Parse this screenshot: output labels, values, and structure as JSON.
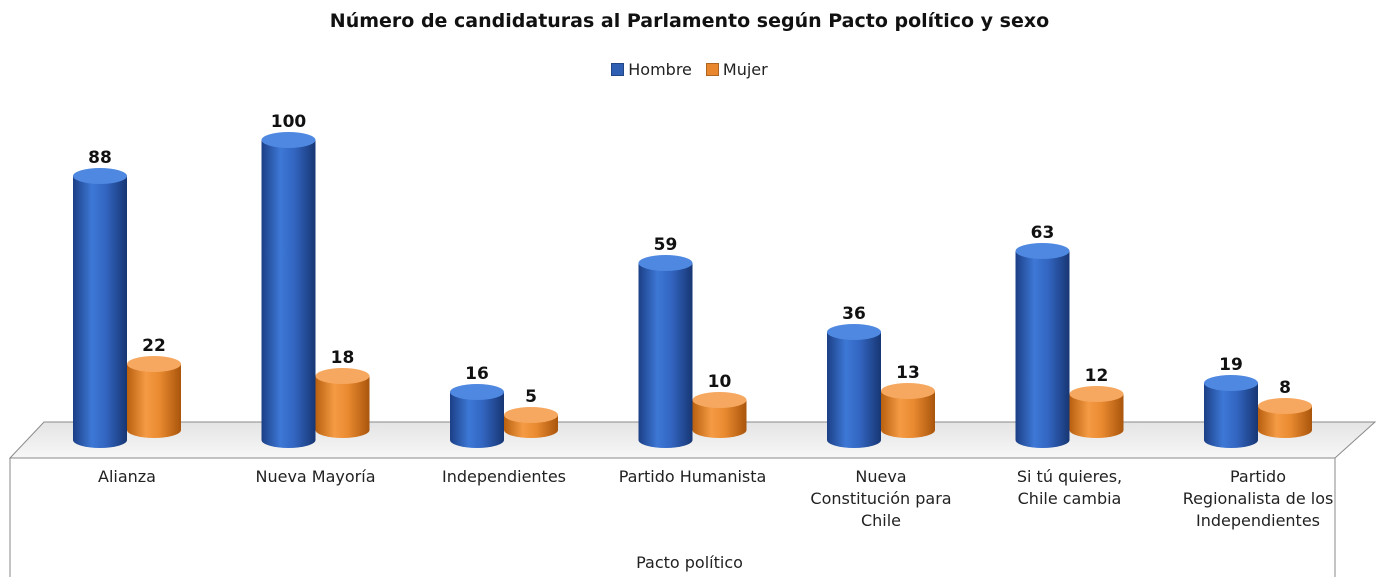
{
  "chart_data": {
    "type": "bar",
    "title": "Número de candidaturas al Parlamento según Pacto político y sexo",
    "xlabel": "Pacto político",
    "ylabel": "",
    "legend_position": "top",
    "categories": [
      "Alianza",
      "Nueva Mayoría",
      "Independientes",
      "Partido Humanista",
      "Nueva Constitución para Chile",
      "Si tú quieres, Chile cambia",
      "Partido Regionalista de los Independientes"
    ],
    "category_lines": [
      [
        "Alianza"
      ],
      [
        "Nueva Mayoría"
      ],
      [
        "Independientes"
      ],
      [
        "Partido Humanista"
      ],
      [
        "Nueva",
        "Constitución para",
        "Chile"
      ],
      [
        "Si tú quieres,",
        "Chile cambia"
      ],
      [
        "Partido",
        "Regionalista de los",
        "Independientes"
      ]
    ],
    "series": [
      {
        "name": "Hombre",
        "color": "#2f5fb3",
        "values": [
          88,
          100,
          16,
          59,
          36,
          63,
          19
        ]
      },
      {
        "name": "Mujer",
        "color": "#e8872e",
        "values": [
          22,
          18,
          5,
          10,
          13,
          12,
          8
        ]
      }
    ],
    "ylim": [
      0,
      100
    ],
    "grid": false
  }
}
